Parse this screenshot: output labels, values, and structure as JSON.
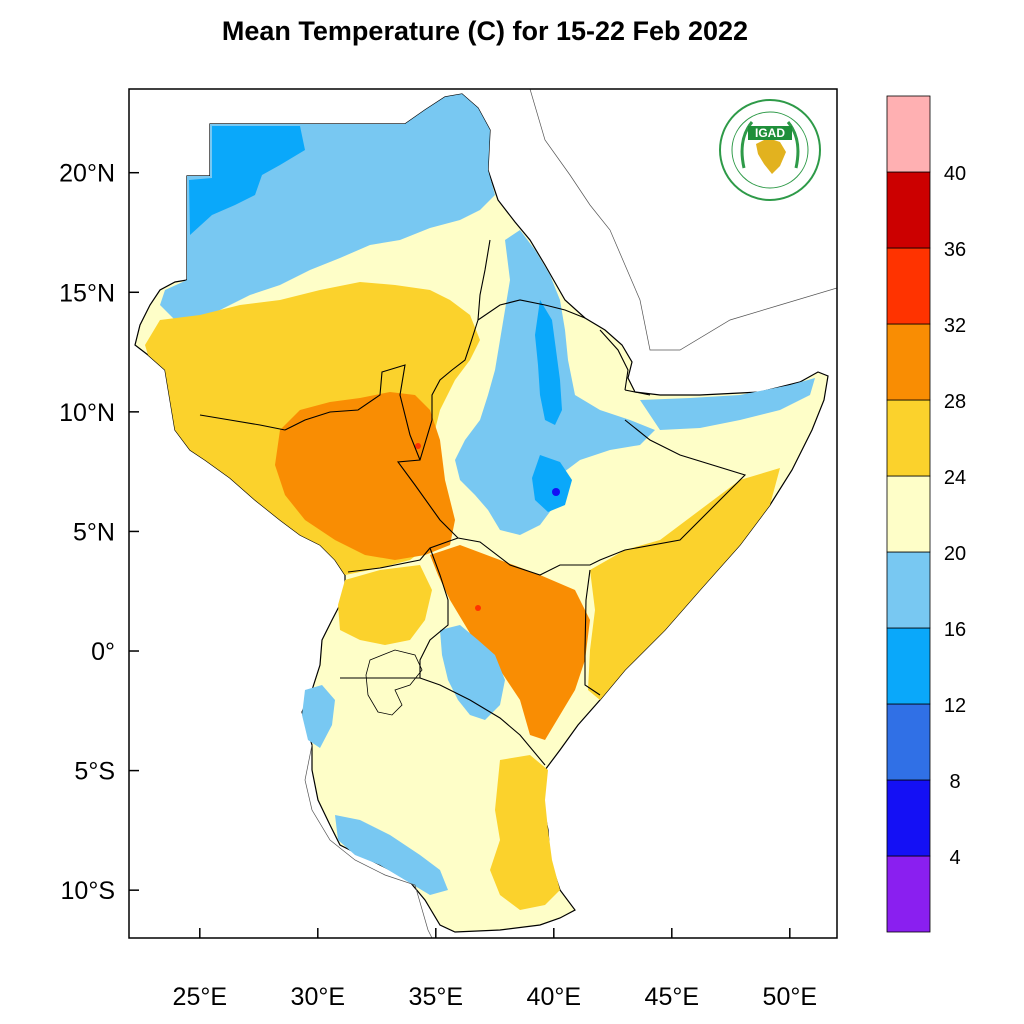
{
  "title": "Mean Temperature (C) for 15-22 Feb 2022",
  "map": {
    "lon_range": [
      22,
      52
    ],
    "lat_range": [
      -12,
      23.5
    ],
    "lon_ticks": [
      {
        "value": 25,
        "label": "25°E"
      },
      {
        "value": 30,
        "label": "30°E"
      },
      {
        "value": 35,
        "label": "35°E"
      },
      {
        "value": 40,
        "label": "40°E"
      },
      {
        "value": 45,
        "label": "45°E"
      },
      {
        "value": 50,
        "label": "50°E"
      }
    ],
    "lat_ticks": [
      {
        "value": 20,
        "label": "20°N"
      },
      {
        "value": 15,
        "label": "15°N"
      },
      {
        "value": 10,
        "label": "10°N"
      },
      {
        "value": 5,
        "label": "5°N"
      },
      {
        "value": 0,
        "label": "0°"
      },
      {
        "value": -5,
        "label": "5°S"
      },
      {
        "value": -10,
        "label": "10°S"
      }
    ]
  },
  "colorbar": {
    "colors": [
      "#8a1ff0",
      "#1410f5",
      "#3070e6",
      "#0aa8fa",
      "#78c8f2",
      "#fefec8",
      "#fbd22c",
      "#f98d03",
      "#ff3300",
      "#cc0000",
      "#ffb0b2"
    ],
    "labels": [
      "4",
      "8",
      "12",
      "16",
      "20",
      "24",
      "28",
      "32",
      "36",
      "40"
    ]
  },
  "logo": {
    "name": "IGAD",
    "colors": {
      "green": "#1f8f3a",
      "gold": "#e2b21f",
      "ring": "#2e9a48"
    }
  }
}
